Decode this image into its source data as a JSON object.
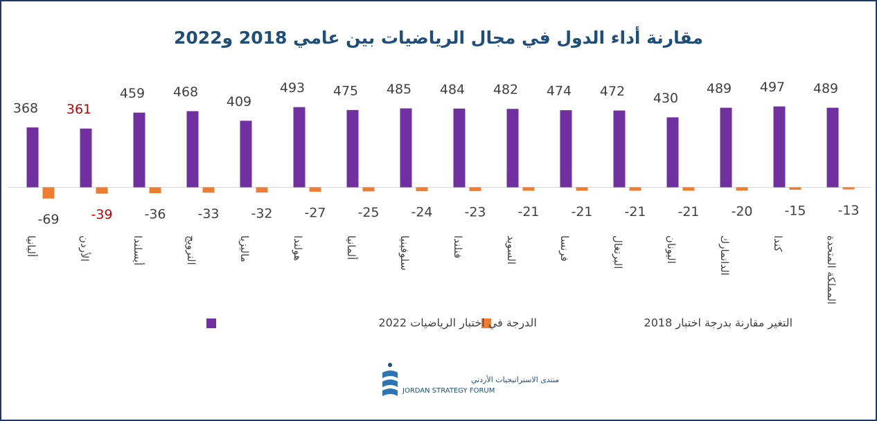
{
  "chart_data": {
    "type": "bar",
    "title": "مقارنة أداء الدول في مجال الرياضيات بين عامي 2018 و2022",
    "categories": [
      "ألبانيا",
      "الأردن",
      "أيسلندا",
      "النرويج",
      "ماليزيا",
      "هولندا",
      "ألمانيا",
      "سلوفينيا",
      "فنلندا",
      "السويد",
      "فرنسا",
      "البرتغال",
      "اليونان",
      "الدانمارك",
      "كندا",
      "المملكة المتحدة"
    ],
    "series": [
      {
        "name": "الدرجة في اختبار الرياضيات 2022",
        "color": "#7030a0",
        "values": [
          368,
          361,
          459,
          468,
          409,
          493,
          475,
          485,
          484,
          482,
          474,
          472,
          430,
          489,
          497,
          489
        ]
      },
      {
        "name": "التغير مقارنة بدرجة اختبار 2018",
        "color": "#ed7d31",
        "values": [
          -69,
          -39,
          -36,
          -33,
          -32,
          -27,
          -25,
          -24,
          -23,
          -21,
          -21,
          -21,
          -21,
          -20,
          -15,
          -13
        ]
      }
    ],
    "ylim": [
      -100,
      500
    ],
    "highlight": {
      "index": 1,
      "color": "#c00000"
    },
    "legend": "bottom"
  },
  "logo": {
    "arabic": "منتدى الاستراتيجيات الأردني",
    "english": "JORDAN STRATEGY FORUM"
  }
}
